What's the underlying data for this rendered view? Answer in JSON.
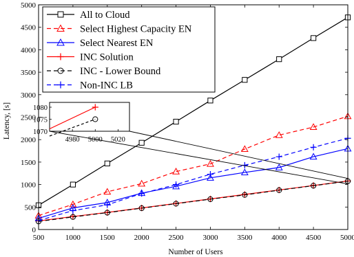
{
  "chart_data": {
    "type": "line",
    "title": "",
    "xlabel": "Number of Users",
    "ylabel": "Latency,  [s]",
    "xlim": [
      500,
      5000
    ],
    "ylim": [
      0,
      5000
    ],
    "x_ticks": [
      500,
      1000,
      1500,
      2000,
      2500,
      3000,
      3500,
      4000,
      4500,
      5000
    ],
    "y_ticks": [
      0,
      500,
      1000,
      1500,
      2000,
      2500,
      3000,
      3500,
      4000,
      4500,
      5000
    ],
    "x_tick_labels": [
      "500",
      "1000",
      "1500",
      "2000",
      "2500",
      "3000",
      "3500",
      "4000",
      "4500",
      "5000"
    ],
    "y_tick_labels": [
      "0",
      "500",
      "1000",
      "1500",
      "2000",
      "2500",
      "3000",
      "3500",
      "4000",
      "4500",
      "5000"
    ],
    "grid": false,
    "legend_position": "top-left",
    "x": [
      500,
      1000,
      1500,
      2000,
      2500,
      3000,
      3500,
      4000,
      4500,
      5000
    ],
    "series": [
      {
        "name": "All to Cloud",
        "color": "#000000",
        "dash": "solid",
        "marker": "square",
        "values": [
          540,
          1000,
          1470,
          1930,
          2400,
          2870,
          3330,
          3790,
          4260,
          4720
        ]
      },
      {
        "name": "Select Highest Capacity EN",
        "color": "#ff0000",
        "dash": "dashed",
        "marker": "triangle",
        "values": [
          310,
          560,
          840,
          1020,
          1290,
          1460,
          1790,
          2100,
          2280,
          2520
        ]
      },
      {
        "name": "Select Nearest EN",
        "color": "#0000ff",
        "dash": "solid",
        "marker": "triangle",
        "values": [
          250,
          480,
          600,
          810,
          960,
          1150,
          1270,
          1380,
          1620,
          1800
        ]
      },
      {
        "name": "INC Solution",
        "color": "#ff0000",
        "dash": "solid",
        "marker": "plus",
        "values": [
          190,
          290,
          380,
          480,
          580,
          680,
          780,
          880,
          980,
          1080
        ]
      },
      {
        "name": "INC - Lower Bound",
        "color": "#000000",
        "dash": "dashed",
        "marker": "circle",
        "values": [
          180,
          280,
          375,
          475,
          575,
          675,
          770,
          875,
          975,
          1075
        ]
      },
      {
        "name": "Non-INC LB",
        "color": "#0000ff",
        "dash": "dashed",
        "marker": "plus",
        "values": [
          200,
          420,
          550,
          800,
          1000,
          1230,
          1430,
          1620,
          1830,
          2030
        ]
      }
    ],
    "inset": {
      "xlim": [
        4960,
        5030
      ],
      "ylim": [
        1070,
        1082
      ],
      "x_ticks": [
        4980,
        5000,
        5020
      ],
      "y_ticks": [
        1070,
        1075,
        1080
      ],
      "x_tick_labels": [
        "4980",
        "5000",
        "5020"
      ],
      "y_tick_labels": [
        "1070",
        "1075",
        "1080"
      ],
      "series": [
        {
          "name": "INC Solution",
          "color": "#ff0000",
          "dash": "solid",
          "marker": "plus",
          "x": [
            4960,
            5000
          ],
          "values": [
            1071,
            1080
          ]
        },
        {
          "name": "INC - Lower Bound",
          "color": "#000000",
          "dash": "dashed",
          "marker": "circle",
          "x": [
            4960,
            5000
          ],
          "values": [
            1068,
            1075
          ]
        }
      ]
    }
  }
}
